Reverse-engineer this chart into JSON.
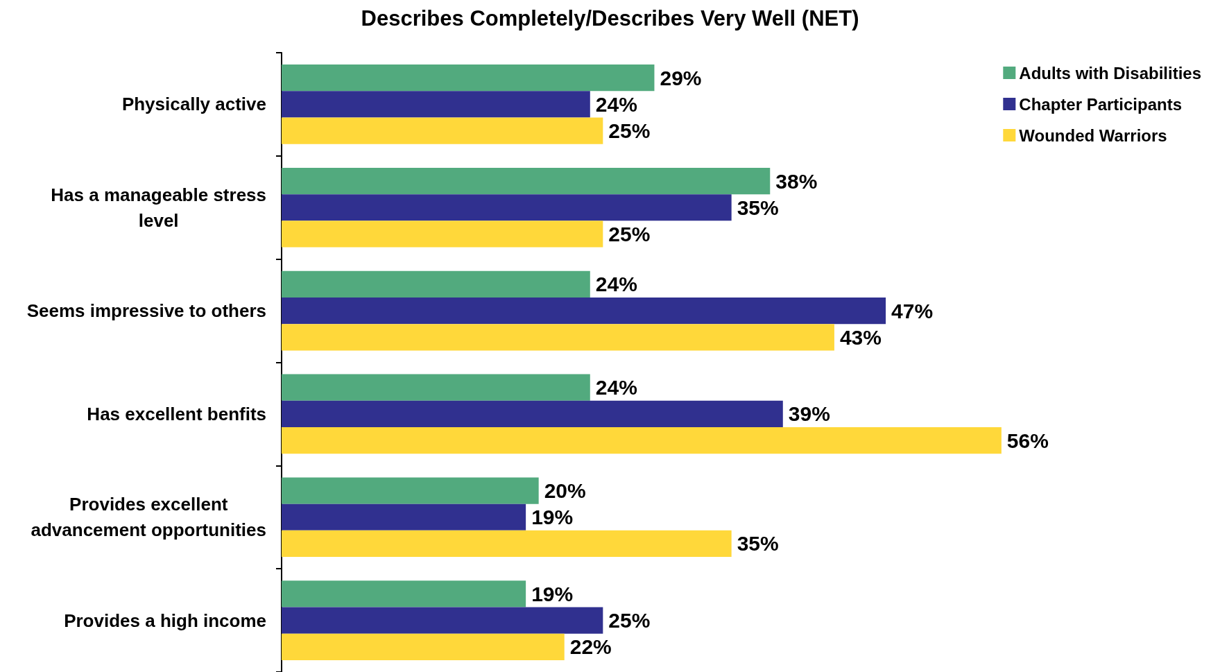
{
  "chart_data": {
    "type": "bar",
    "orientation": "horizontal",
    "title": "Describes Completely/Describes Very Well (NET)",
    "categories": [
      "Physically active",
      "Has a manageable stress level",
      "Seems impressive to others",
      "Has excellent benfits",
      "Provides excellent advancement opportunities",
      "Provides a high income"
    ],
    "series": [
      {
        "name": "Adults with Disabilities",
        "color": "#52aa7e",
        "values": [
          29,
          38,
          24,
          24,
          20,
          19
        ],
        "value_labels": [
          "29%",
          "38%",
          "24%",
          "24%",
          "20%",
          "19%"
        ]
      },
      {
        "name": "Chapter Participants",
        "color": "#30308f",
        "values": [
          24,
          35,
          47,
          39,
          19,
          25
        ],
        "value_labels": [
          "24%",
          "35%",
          "47%",
          "39%",
          "19%",
          "25%"
        ]
      },
      {
        "name": "Wounded Warriors",
        "color": "#ffd83a",
        "values": [
          25,
          25,
          43,
          56,
          35,
          22
        ],
        "value_labels": [
          "25%",
          "25%",
          "43%",
          "56%",
          "35%",
          "22%"
        ]
      }
    ],
    "legend": "top right"
  }
}
